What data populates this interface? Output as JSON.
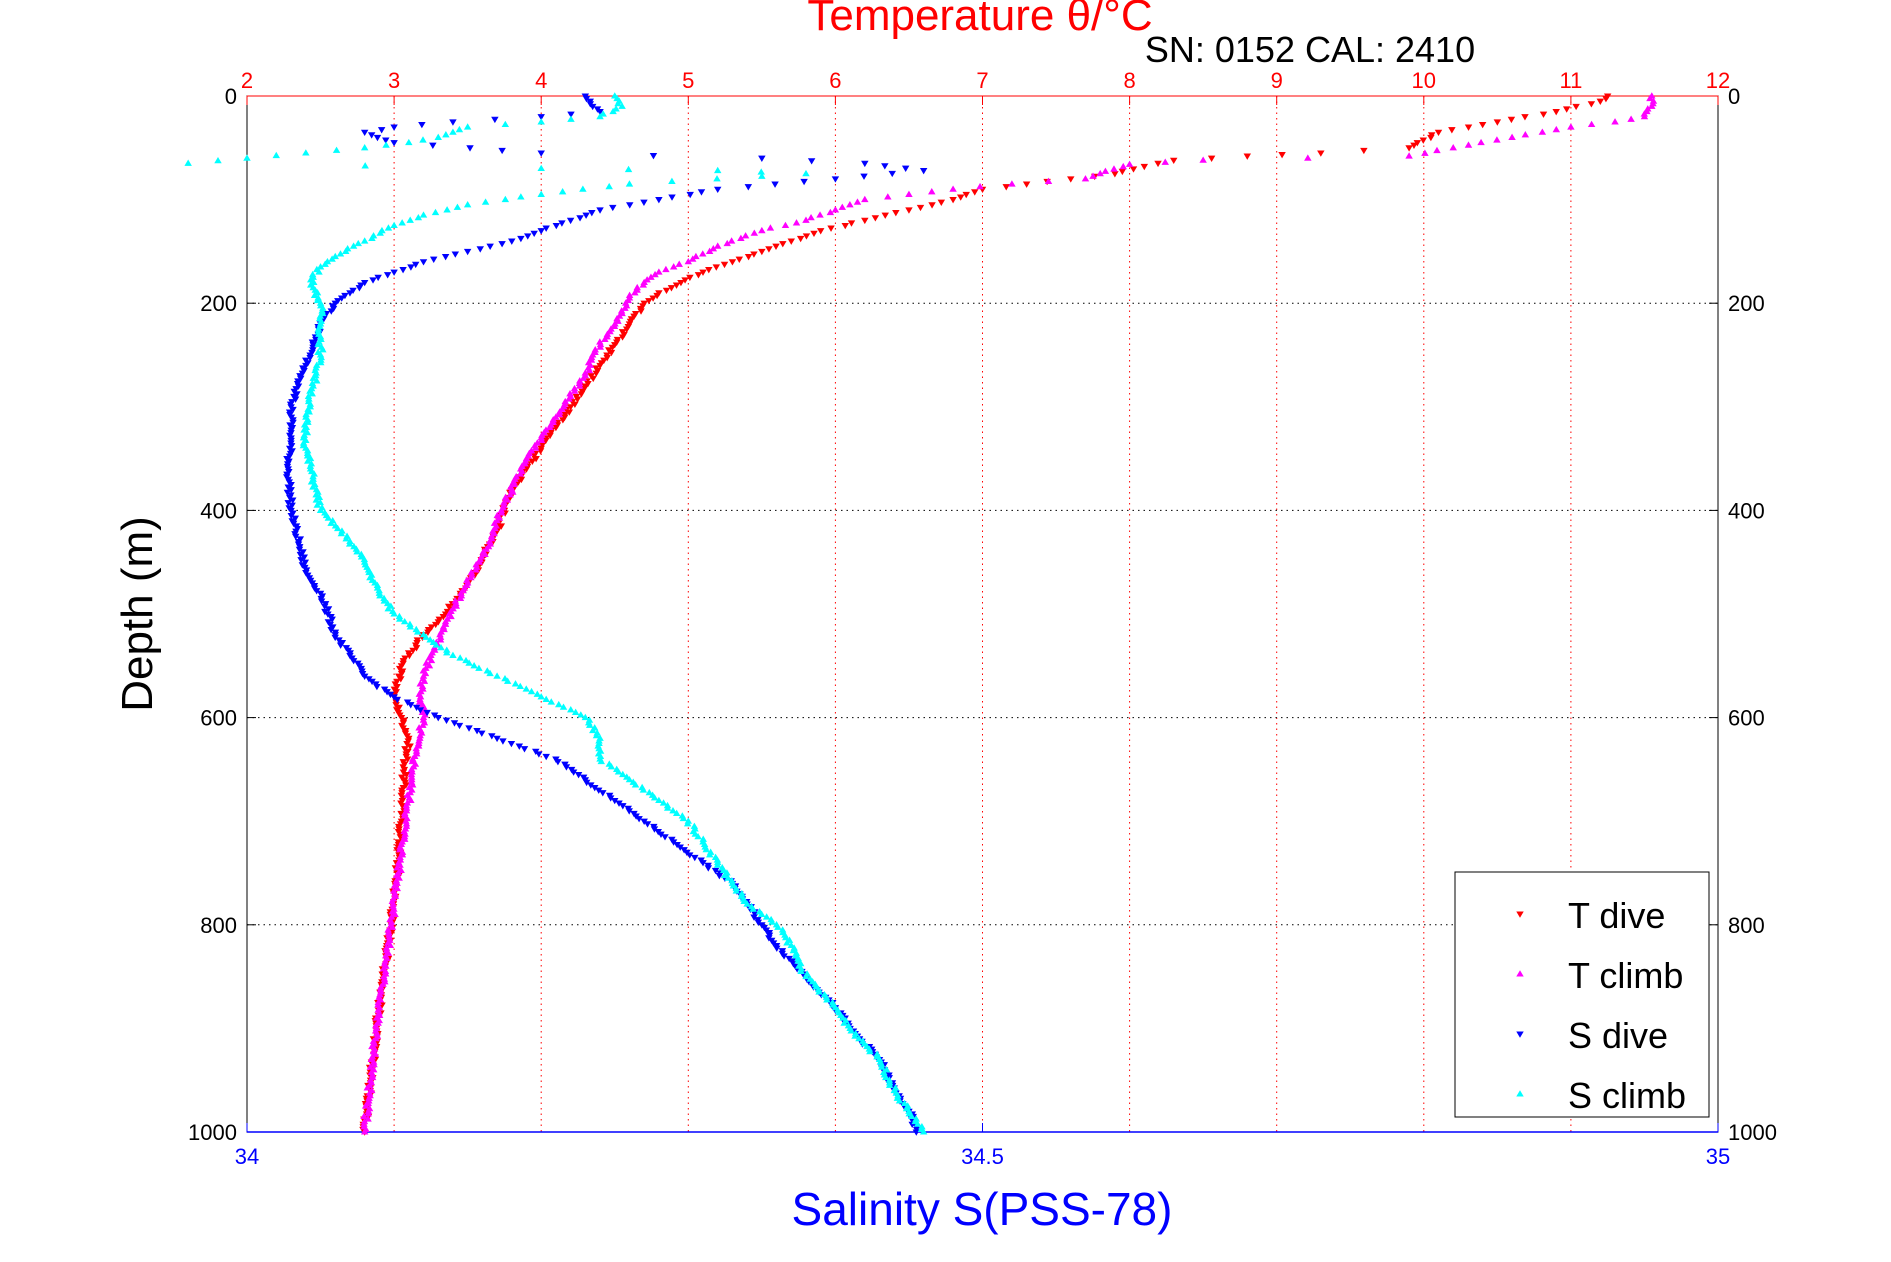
{
  "chart_data": {
    "type": "scatter",
    "title": "Temperature θ/°C",
    "subtitle": "SN: 0152  CAL: 2410",
    "xlabel": "Salinity S(PSS-78)",
    "ylabel": "Depth (m)",
    "ylim": [
      0,
      1000
    ],
    "y_reversed": true,
    "y_ticks": [
      0,
      200,
      400,
      600,
      800,
      1000
    ],
    "top_axis": {
      "label": "Temperature θ/°C",
      "range": [
        2,
        12
      ],
      "ticks": [
        2,
        3,
        4,
        5,
        6,
        7,
        8,
        9,
        10,
        11,
        12
      ],
      "color": "#ff0000"
    },
    "bottom_axis": {
      "label": "Salinity S(PSS-78)",
      "range": [
        34,
        35
      ],
      "ticks": [
        "34",
        "34.5",
        "35"
      ],
      "color": "#0000ff"
    },
    "grid": true,
    "legend_position": "bottom-right",
    "series": [
      {
        "name": "T dive",
        "axis": "temperature",
        "marker": "triangle-down",
        "color": "#ff0000",
        "points": [
          [
            11.25,
            0
          ],
          [
            11.2,
            5
          ],
          [
            10.9,
            15
          ],
          [
            10.5,
            25
          ],
          [
            10.1,
            35
          ],
          [
            9.9,
            50
          ],
          [
            9.3,
            55
          ],
          [
            8.8,
            58
          ],
          [
            8.3,
            62
          ],
          [
            8.1,
            68
          ],
          [
            7.9,
            75
          ],
          [
            7.6,
            80
          ],
          [
            7.3,
            85
          ],
          [
            7.0,
            90
          ],
          [
            6.8,
            100
          ],
          [
            6.5,
            110
          ],
          [
            6.2,
            120
          ],
          [
            5.9,
            130
          ],
          [
            5.7,
            140
          ],
          [
            5.5,
            150
          ],
          [
            5.3,
            160
          ],
          [
            5.1,
            170
          ],
          [
            4.95,
            180
          ],
          [
            4.8,
            190
          ],
          [
            4.7,
            200
          ],
          [
            4.6,
            220
          ],
          [
            4.5,
            240
          ],
          [
            4.4,
            260
          ],
          [
            4.3,
            280
          ],
          [
            4.2,
            300
          ],
          [
            4.1,
            320
          ],
          [
            4.0,
            340
          ],
          [
            3.9,
            360
          ],
          [
            3.8,
            380
          ],
          [
            3.75,
            400
          ],
          [
            3.7,
            420
          ],
          [
            3.62,
            440
          ],
          [
            3.55,
            460
          ],
          [
            3.45,
            480
          ],
          [
            3.35,
            500
          ],
          [
            3.2,
            520
          ],
          [
            3.05,
            550
          ],
          [
            3.0,
            580
          ],
          [
            3.05,
            600
          ],
          [
            3.1,
            620
          ],
          [
            3.07,
            650
          ],
          [
            3.05,
            700
          ],
          [
            3.02,
            750
          ],
          [
            2.98,
            800
          ],
          [
            2.93,
            850
          ],
          [
            2.88,
            900
          ],
          [
            2.84,
            950
          ],
          [
            2.8,
            1000
          ]
        ]
      },
      {
        "name": "T climb",
        "axis": "temperature",
        "marker": "triangle-up",
        "color": "#ff00ff",
        "points": [
          [
            11.55,
            0
          ],
          [
            11.55,
            10
          ],
          [
            11.5,
            20
          ],
          [
            11.3,
            25
          ],
          [
            11.0,
            30
          ],
          [
            10.6,
            40
          ],
          [
            10.2,
            50
          ],
          [
            9.9,
            58
          ],
          [
            8.5,
            62
          ],
          [
            8.0,
            66
          ],
          [
            7.8,
            75
          ],
          [
            7.7,
            80
          ],
          [
            7.2,
            85
          ],
          [
            6.8,
            90
          ],
          [
            6.5,
            95
          ],
          [
            6.2,
            100
          ],
          [
            6.0,
            110
          ],
          [
            5.8,
            120
          ],
          [
            5.5,
            130
          ],
          [
            5.2,
            145
          ],
          [
            5.0,
            160
          ],
          [
            4.8,
            170
          ],
          [
            4.7,
            180
          ],
          [
            4.6,
            195
          ],
          [
            4.55,
            210
          ],
          [
            4.45,
            230
          ],
          [
            4.35,
            250
          ],
          [
            4.3,
            270
          ],
          [
            4.2,
            290
          ],
          [
            4.1,
            310
          ],
          [
            4.0,
            330
          ],
          [
            3.9,
            350
          ],
          [
            3.8,
            380
          ],
          [
            3.7,
            410
          ],
          [
            3.65,
            430
          ],
          [
            3.58,
            450
          ],
          [
            3.5,
            470
          ],
          [
            3.42,
            490
          ],
          [
            3.35,
            510
          ],
          [
            3.25,
            540
          ],
          [
            3.2,
            560
          ],
          [
            3.18,
            580
          ],
          [
            3.2,
            600
          ],
          [
            3.15,
            630
          ],
          [
            3.12,
            660
          ],
          [
            3.08,
            700
          ],
          [
            3.03,
            750
          ],
          [
            2.98,
            800
          ],
          [
            2.93,
            850
          ],
          [
            2.88,
            900
          ],
          [
            2.84,
            950
          ],
          [
            2.8,
            1000
          ]
        ]
      },
      {
        "name": "S dive",
        "axis": "salinity",
        "marker": "triangle-down",
        "color": "#0000ff",
        "points": [
          [
            34.23,
            0
          ],
          [
            34.235,
            10
          ],
          [
            34.24,
            15
          ],
          [
            34.2,
            20
          ],
          [
            34.14,
            25
          ],
          [
            34.1,
            30
          ],
          [
            34.08,
            35
          ],
          [
            34.1,
            45
          ],
          [
            34.2,
            55
          ],
          [
            34.35,
            60
          ],
          [
            34.42,
            65
          ],
          [
            34.46,
            72
          ],
          [
            34.4,
            80
          ],
          [
            34.32,
            90
          ],
          [
            34.28,
            100
          ],
          [
            34.24,
            110
          ],
          [
            34.22,
            120
          ],
          [
            34.2,
            130
          ],
          [
            34.18,
            140
          ],
          [
            34.15,
            150
          ],
          [
            34.12,
            160
          ],
          [
            34.1,
            170
          ],
          [
            34.08,
            180
          ],
          [
            34.07,
            190
          ],
          [
            34.06,
            200
          ],
          [
            34.05,
            220
          ],
          [
            34.045,
            240
          ],
          [
            34.04,
            260
          ],
          [
            34.035,
            280
          ],
          [
            34.03,
            300
          ],
          [
            34.03,
            330
          ],
          [
            34.028,
            360
          ],
          [
            34.03,
            400
          ],
          [
            34.035,
            430
          ],
          [
            34.04,
            460
          ],
          [
            34.05,
            480
          ],
          [
            34.055,
            500
          ],
          [
            34.06,
            520
          ],
          [
            34.07,
            540
          ],
          [
            34.08,
            560
          ],
          [
            34.1,
            580
          ],
          [
            34.13,
            600
          ],
          [
            34.17,
            620
          ],
          [
            34.21,
            640
          ],
          [
            34.23,
            660
          ],
          [
            34.25,
            680
          ],
          [
            34.27,
            700
          ],
          [
            34.29,
            720
          ],
          [
            34.31,
            740
          ],
          [
            34.33,
            760
          ],
          [
            34.34,
            780
          ],
          [
            34.35,
            800
          ],
          [
            34.36,
            820
          ],
          [
            34.38,
            850
          ],
          [
            34.4,
            880
          ],
          [
            34.41,
            900
          ],
          [
            34.43,
            930
          ],
          [
            34.44,
            960
          ],
          [
            34.45,
            980
          ],
          [
            34.455,
            1000
          ]
        ]
      },
      {
        "name": "S climb",
        "axis": "salinity",
        "marker": "triangle-up",
        "color": "#00ffff",
        "points": [
          [
            34.25,
            0
          ],
          [
            34.255,
            10
          ],
          [
            34.24,
            20
          ],
          [
            34.2,
            25
          ],
          [
            34.15,
            30
          ],
          [
            34.14,
            35
          ],
          [
            34.13,
            40
          ],
          [
            34.11,
            45
          ],
          [
            34.08,
            50
          ],
          [
            34.04,
            55
          ],
          [
            34.0,
            60
          ],
          [
            33.96,
            65
          ],
          [
            34.2,
            70
          ],
          [
            34.32,
            72
          ],
          [
            34.38,
            75
          ],
          [
            34.26,
            85
          ],
          [
            34.2,
            95
          ],
          [
            34.15,
            105
          ],
          [
            34.12,
            115
          ],
          [
            34.1,
            125
          ],
          [
            34.08,
            140
          ],
          [
            34.06,
            155
          ],
          [
            34.05,
            165
          ],
          [
            34.045,
            175
          ],
          [
            34.045,
            185
          ],
          [
            34.05,
            200
          ],
          [
            34.05,
            220
          ],
          [
            34.05,
            250
          ],
          [
            34.045,
            280
          ],
          [
            34.04,
            310
          ],
          [
            34.04,
            340
          ],
          [
            34.045,
            370
          ],
          [
            34.05,
            400
          ],
          [
            34.07,
            430
          ],
          [
            34.08,
            450
          ],
          [
            34.09,
            480
          ],
          [
            34.1,
            500
          ],
          [
            34.12,
            520
          ],
          [
            34.14,
            540
          ],
          [
            34.17,
            560
          ],
          [
            34.2,
            580
          ],
          [
            34.23,
            600
          ],
          [
            34.24,
            620
          ],
          [
            34.24,
            640
          ],
          [
            34.26,
            660
          ],
          [
            34.28,
            680
          ],
          [
            34.3,
            700
          ],
          [
            34.31,
            720
          ],
          [
            34.32,
            740
          ],
          [
            34.33,
            760
          ],
          [
            34.34,
            780
          ],
          [
            34.36,
            800
          ],
          [
            34.37,
            820
          ],
          [
            34.38,
            850
          ],
          [
            34.4,
            880
          ],
          [
            34.41,
            900
          ],
          [
            34.43,
            930
          ],
          [
            34.44,
            960
          ],
          [
            34.45,
            980
          ],
          [
            34.46,
            1000
          ]
        ]
      }
    ],
    "legend": [
      "T dive",
      "T climb",
      "S dive",
      "S climb"
    ]
  }
}
